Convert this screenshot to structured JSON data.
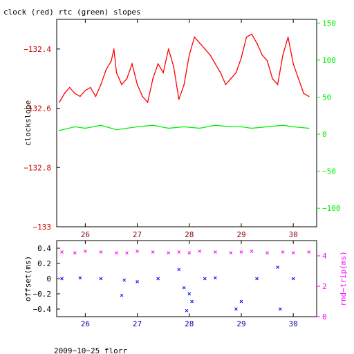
{
  "colors": {
    "clock": "#ff0000",
    "rtc": "#00ee00",
    "offset": "#0000ff",
    "rtt": "#ff00ff",
    "axis": "#000000"
  },
  "chart_data": [
    {
      "type": "line",
      "title": "clock (red) rtc (green) slopes",
      "ylabel": "clockslope",
      "ylabel_right": "",
      "xlim": [
        25.45,
        30.45
      ],
      "ylim": [
        -133,
        -132.3
      ],
      "ylim_right": [
        -125,
        155
      ],
      "x_ticks": [
        26,
        27,
        28,
        29,
        30
      ],
      "x_tick_labels": [
        "26",
        "27",
        "28",
        "29",
        "30"
      ],
      "y_ticks": [
        -133,
        -132.8,
        -132.6,
        -132.4
      ],
      "y_tick_labels": [
        "−133",
        "−132.8",
        "−132.6",
        "−132.4"
      ],
      "y_ticks_right": [
        -100,
        -50,
        0,
        50,
        100,
        150
      ],
      "y_tick_labels_right": [
        "−100",
        "−50",
        "0",
        "50",
        "100",
        "150"
      ],
      "series": [
        {
          "axis": "left",
          "x": [
            25.5,
            25.6,
            25.7,
            25.8,
            25.9,
            26.0,
            26.1,
            26.2,
            26.3,
            26.4,
            26.5,
            26.55,
            26.6,
            26.7,
            26.8,
            26.9,
            27.0,
            27.1,
            27.2,
            27.3,
            27.4,
            27.5,
            27.6,
            27.7,
            27.8,
            27.9,
            28.0,
            28.1,
            28.2,
            28.3,
            28.4,
            28.5,
            28.6,
            28.7,
            28.8,
            28.9,
            29.0,
            29.1,
            29.2,
            29.3,
            29.4,
            29.5,
            29.6,
            29.7,
            29.8,
            29.9,
            30.0,
            30.1,
            30.2,
            30.3
          ],
          "y": [
            -132.58,
            -132.55,
            -132.53,
            -132.55,
            -132.56,
            -132.54,
            -132.53,
            -132.56,
            -132.52,
            -132.47,
            -132.44,
            -132.4,
            -132.48,
            -132.52,
            -132.5,
            -132.45,
            -132.52,
            -132.56,
            -132.58,
            -132.5,
            -132.45,
            -132.48,
            -132.4,
            -132.46,
            -132.57,
            -132.52,
            -132.42,
            -132.36,
            -132.38,
            -132.4,
            -132.42,
            -132.45,
            -132.48,
            -132.52,
            -132.5,
            -132.48,
            -132.43,
            -132.36,
            -132.35,
            -132.38,
            -132.42,
            -132.44,
            -132.5,
            -132.52,
            -132.42,
            -132.36,
            -132.45,
            -132.5,
            -132.55,
            -132.56
          ]
        },
        {
          "axis": "right",
          "x": [
            25.5,
            25.8,
            26.0,
            26.3,
            26.6,
            27.0,
            27.3,
            27.6,
            27.9,
            28.2,
            28.5,
            28.8,
            29.0,
            29.2,
            29.5,
            29.8,
            30.0,
            30.3
          ],
          "y": [
            5,
            10,
            8,
            12,
            6,
            10,
            12,
            8,
            10,
            8,
            12,
            10,
            10,
            8,
            10,
            12,
            10,
            8
          ]
        }
      ]
    },
    {
      "type": "scatter",
      "title": "",
      "ylabel": "offset(ms)",
      "ylabel_right": "rnd−trip(ms)",
      "xlim": [
        25.45,
        30.45
      ],
      "ylim": [
        -0.5,
        0.5
      ],
      "ylim_right": [
        0,
        5
      ],
      "x_ticks": [
        26,
        27,
        28,
        29,
        30
      ],
      "x_tick_labels": [
        "26",
        "27",
        "28",
        "29",
        "30"
      ],
      "y_ticks": [
        -0.4,
        -0.2,
        0,
        0.2,
        0.4
      ],
      "y_tick_labels": [
        "−0.4",
        "−0.2",
        "0",
        "0.2",
        "0.4"
      ],
      "y_ticks_right": [
        0,
        2,
        4
      ],
      "y_tick_labels_right": [
        "0",
        "2",
        "4"
      ],
      "series": [
        {
          "axis": "left",
          "x": [
            25.55,
            25.9,
            26.3,
            26.7,
            26.75,
            27.0,
            27.4,
            27.8,
            27.9,
            27.95,
            28.0,
            28.05,
            28.3,
            28.5,
            28.9,
            29.0,
            29.3,
            29.7,
            29.75,
            30.0
          ],
          "y": [
            0.0,
            0.01,
            0.0,
            -0.22,
            -0.02,
            -0.04,
            0.0,
            0.12,
            -0.12,
            -0.42,
            -0.2,
            -0.3,
            0.0,
            0.01,
            -0.4,
            -0.3,
            0.0,
            0.15,
            -0.4,
            0.0
          ]
        },
        {
          "axis": "right",
          "x": [
            25.55,
            25.8,
            26.0,
            26.3,
            26.6,
            26.8,
            27.0,
            27.3,
            27.6,
            27.8,
            28.0,
            28.2,
            28.5,
            28.8,
            29.0,
            29.2,
            29.5,
            29.8,
            30.0,
            30.3
          ],
          "y": [
            4.25,
            4.2,
            4.3,
            4.25,
            4.2,
            4.2,
            4.3,
            4.25,
            4.2,
            4.25,
            4.2,
            4.3,
            4.25,
            4.2,
            4.25,
            4.3,
            4.2,
            4.25,
            4.2,
            4.25
          ]
        }
      ]
    }
  ],
  "footer": "2009−10−25 florr"
}
